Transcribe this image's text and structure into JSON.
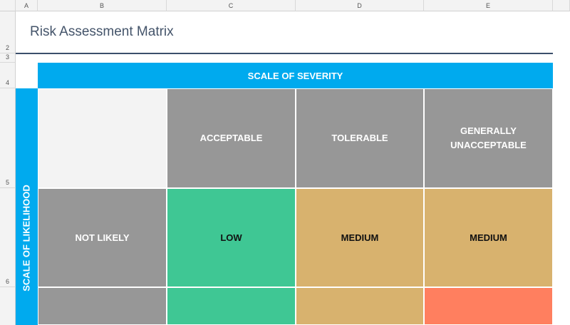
{
  "column_headers": [
    "A",
    "B",
    "C",
    "D",
    "E"
  ],
  "row_headers": [
    "2",
    "3",
    "4",
    "5",
    "6"
  ],
  "title": "Risk Assessment Matrix",
  "severity_label": "SCALE OF SEVERITY",
  "likelihood_label": "SCALE OF LIKELIHOOD",
  "matrix": {
    "columns": [
      "ACCEPTABLE",
      "TOLERABLE",
      "GENERALLY UNACCEPTABLE"
    ],
    "rows": [
      {
        "label": "NOT LIKELY",
        "cells": [
          "LOW",
          "MEDIUM",
          "MEDIUM"
        ]
      }
    ]
  }
}
